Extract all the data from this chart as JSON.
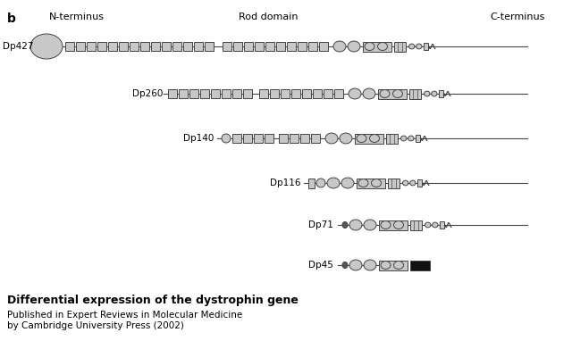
{
  "bg_color": "#ffffff",
  "gray": "#c8c8c8",
  "black": "#000000",
  "dark": "#333333",
  "title_b": "b",
  "label_n": "N-terminus",
  "label_rod": "Rod domain",
  "label_c": "C-terminus",
  "isoform_names": [
    "Dp427",
    "Dp260",
    "Dp140",
    "Dp116",
    "Dp71",
    "Dp45"
  ],
  "bottom_title": "Differential expression of the dystrophin gene",
  "bottom_pub1": "Published in Expert Reviews in Molecular Medicine",
  "bottom_pub2": "by Cambridge University Press (2002)",
  "fig_w": 6.4,
  "fig_h": 3.91,
  "dpi": 100
}
